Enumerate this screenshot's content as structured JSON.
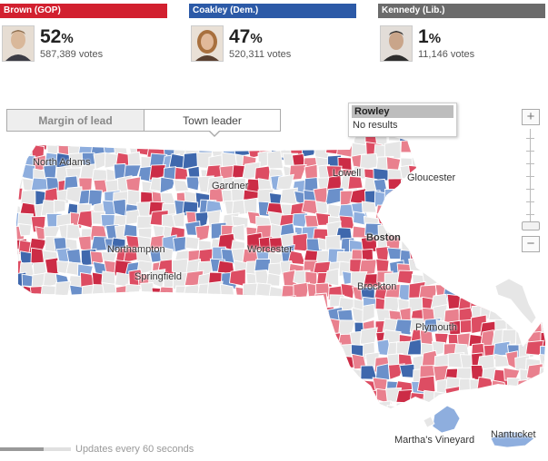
{
  "candidates": [
    {
      "name_party": "Brown (GOP)",
      "percent": "52",
      "votes": "587,389 votes",
      "color": "#d2202f",
      "photo_icon": "candidate-photo"
    },
    {
      "name_party": "Coakley (Dem.)",
      "percent": "47",
      "votes": "520,311 votes",
      "color": "#2c5aa7",
      "photo_icon": "candidate-photo"
    },
    {
      "name_party": "Kennedy (Lib.)",
      "percent": "1",
      "votes": "11,146 votes",
      "color": "#6b6b6b",
      "photo_icon": "candidate-photo"
    }
  ],
  "percent_symbol": "%",
  "view_toggle": {
    "margin_label": "Margin of lead",
    "leader_label": "Town leader",
    "active": "Town leader"
  },
  "tooltip": {
    "title": "Rowley",
    "text": "No results"
  },
  "zoom": {
    "plus": "+",
    "minus": "−",
    "level": 0.05
  },
  "map_colors": {
    "red_light": "#e9808e",
    "red_mid": "#dd4d63",
    "red_dark": "#cc2c46",
    "blue_light": "#8eaede",
    "blue_mid": "#6b90ca",
    "blue_dark": "#3f68ad",
    "no_data": "#e6e6e6",
    "border": "#ffffff"
  },
  "places": {
    "north_adams": "North Adams",
    "gardner": "Gardner",
    "lowell": "Lowell",
    "gloucester": "Gloucester",
    "boston": "Boston",
    "northampton": "Northampton",
    "worcester": "Worcester",
    "springfield": "Springfield",
    "brockton": "Brockton",
    "plymouth": "Plymouth",
    "marthas_vineyard": "Martha's Vineyard",
    "nantucket": "Nantucket"
  },
  "footer": {
    "update_text": "Updates every 60 seconds",
    "progress": 0.61
  }
}
